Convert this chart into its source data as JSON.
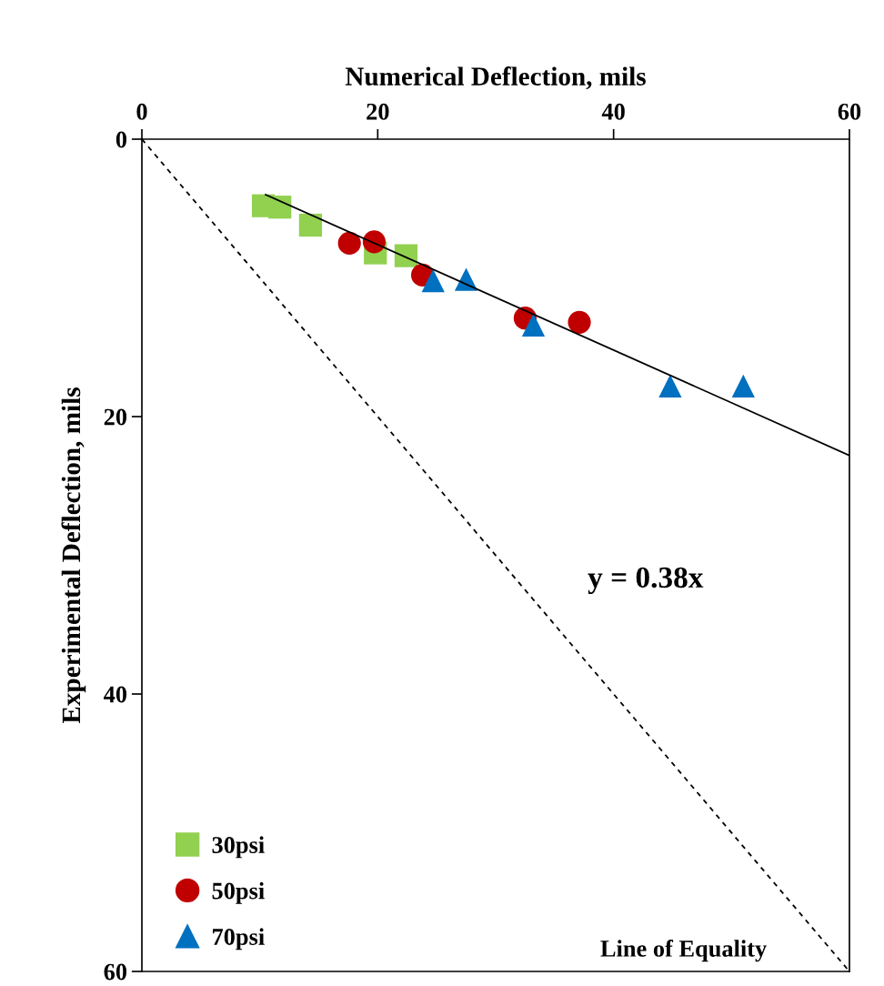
{
  "chart_data": {
    "type": "scatter",
    "xlabel": "Numerical Deflection, mils",
    "ylabel": "Experimental Deflection, mils",
    "xlim": [
      0,
      60
    ],
    "xticks": [
      0,
      20,
      40,
      60
    ],
    "ylim": [
      60,
      0
    ],
    "yticks": [
      0,
      20,
      40,
      60
    ],
    "grid": false,
    "legend": "bottom left",
    "annotations": [
      "y = 0.38x"
    ],
    "series": [
      {
        "name": "30psi",
        "color": "#92d050",
        "marker": "square",
        "x": [
          10.3,
          11.7,
          14.3,
          19.8,
          22.4
        ],
        "values": [
          4.8,
          4.9,
          6.2,
          8.2,
          8.4
        ]
      },
      {
        "name": "50psi",
        "color": "#c00000",
        "marker": "circle",
        "x": [
          17.6,
          19.7,
          23.8,
          32.5,
          37.1
        ],
        "values": [
          7.5,
          7.4,
          9.8,
          12.9,
          13.2
        ]
      },
      {
        "name": "70psi",
        "color": "#0070c0",
        "marker": "triangle",
        "x": [
          24.7,
          27.5,
          33.2,
          44.8,
          51.0
        ],
        "values": [
          10.2,
          10.1,
          13.4,
          17.8,
          17.8
        ]
      },
      {
        "type": "line",
        "color": "#000000",
        "line_style": "solid",
        "x": [
          10.5,
          60
        ],
        "values": [
          4.0,
          22.8
        ]
      },
      {
        "type": "line",
        "name": "Line of Equality",
        "color": "#000000",
        "line_style": "dashed",
        "x": [
          0,
          60
        ],
        "values": [
          0,
          60
        ]
      }
    ]
  }
}
